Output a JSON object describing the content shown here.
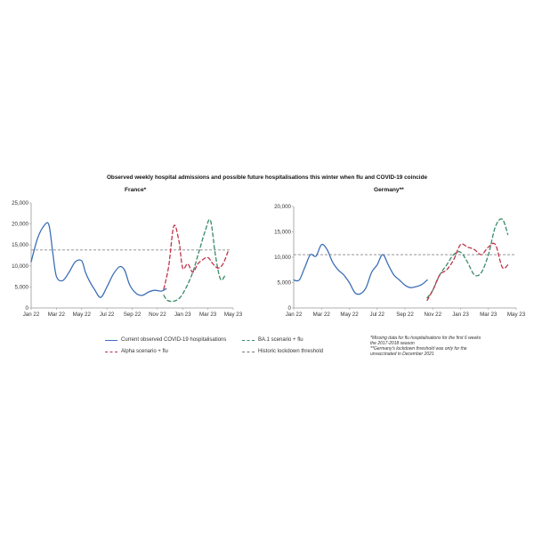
{
  "title": "Observed weekly hospital admissions and possible future hospitalisations this winter when flu and COVID-19 coincide",
  "legend": {
    "observed": "Current observed COVID-19 hospitalisations",
    "ba1": "BA.1 scenario + flu",
    "alpha": "Alpha scenario + flu",
    "historic": "Historic lockdown threshold"
  },
  "notes": [
    "*Missing data for flu hospitalisations for the first 6 weeks the 2017-2018 season",
    "**Germany's lockdown threshold was only for the unvaccinated in December 2021"
  ],
  "colors": {
    "observed": "#3d6fb6",
    "ba1": "#3a8a66",
    "alpha": "#c0334a",
    "historic": "#777777",
    "axis": "#999999"
  },
  "chart_data": [
    {
      "type": "line",
      "title": "France*",
      "x_ticks": [
        "Jan 22",
        "Mar 22",
        "May 22",
        "Jul 22",
        "Sep 22",
        "Nov 22",
        "Jan 23",
        "Mar 23",
        "May 23"
      ],
      "y_ticks": [
        "0",
        "5,000",
        "10,000",
        "15,000",
        "20,000",
        "25,000"
      ],
      "ylim": [
        0,
        25000
      ],
      "xlim": [
        0,
        16
      ],
      "threshold": 13800,
      "series": [
        {
          "name": "Current observed COVID-19 hospitalisations",
          "key": "observed",
          "x": [
            0,
            0.5,
            1,
            1.4,
            1.7,
            2,
            2.5,
            3,
            3.5,
            4,
            4.3,
            4.6,
            5,
            5.5,
            6,
            6.5,
            7,
            7.4,
            7.8,
            8.3,
            8.8,
            9.3,
            9.8,
            10.3,
            10.7
          ],
          "y": [
            11000,
            16500,
            19500,
            19800,
            13500,
            7500,
            6500,
            8500,
            11000,
            11200,
            8500,
            6500,
            4500,
            2500,
            5000,
            8000,
            9800,
            9000,
            5500,
            3500,
            3000,
            3800,
            4200,
            4000,
            4600
          ]
        },
        {
          "name": "BA.1 scenario + flu",
          "key": "ba1",
          "x": [
            10.5,
            10.8,
            11.3,
            11.8,
            12.3,
            12.8,
            13.3,
            13.8,
            14.2,
            14.6,
            15,
            15.4
          ],
          "y": [
            3000,
            1800,
            1600,
            2500,
            5000,
            8500,
            13500,
            18500,
            20800,
            12500,
            6800,
            8000
          ]
        },
        {
          "name": "Alpha scenario + flu",
          "key": "alpha",
          "x": [
            10.5,
            10.9,
            11.3,
            11.7,
            12,
            12.4,
            12.8,
            13.2,
            13.6,
            14,
            14.4,
            14.8,
            15.2,
            15.6
          ],
          "y": [
            4500,
            10000,
            19500,
            16000,
            9500,
            10500,
            8500,
            10500,
            11500,
            12000,
            10500,
            9500,
            10500,
            13500
          ]
        }
      ]
    },
    {
      "type": "line",
      "title": "Germany**",
      "x_ticks": [
        "Jan 22",
        "Mar 22",
        "May 22",
        "Jul 22",
        "Sep 22",
        "Nov 22",
        "Jan 23",
        "Mar 23",
        "May 23"
      ],
      "y_ticks": [
        "0",
        "5,000",
        "10,000",
        "15,000",
        "20,000"
      ],
      "ylim": [
        0,
        20000
      ],
      "xlim": [
        0,
        16
      ],
      "threshold": 10500,
      "series": [
        {
          "name": "Current observed COVID-19 hospitalisations",
          "key": "observed",
          "x": [
            0,
            0.4,
            0.8,
            1.2,
            1.6,
            2,
            2.4,
            2.8,
            3.2,
            3.6,
            4,
            4.4,
            4.8,
            5.2,
            5.6,
            6,
            6.4,
            6.8,
            7.2,
            7.6,
            8,
            8.4,
            8.8,
            9.2,
            9.6
          ],
          "y": [
            5500,
            5500,
            8000,
            10500,
            10200,
            12500,
            11500,
            9000,
            7500,
            6500,
            5000,
            3000,
            2800,
            4000,
            7000,
            8500,
            10500,
            8500,
            6500,
            5500,
            4500,
            4000,
            4200,
            4600,
            5500
          ]
        },
        {
          "name": "BA.1 scenario + flu",
          "key": "ba1",
          "x": [
            9.6,
            10,
            10.5,
            11,
            11.5,
            12,
            12.5,
            13,
            13.5,
            14,
            14.5,
            15,
            15.4
          ],
          "y": [
            2000,
            3500,
            6500,
            8500,
            10500,
            11000,
            9000,
            6500,
            7000,
            10500,
            16000,
            17500,
            14500
          ]
        },
        {
          "name": "Alpha scenario + flu",
          "key": "alpha",
          "x": [
            9.6,
            10,
            10.5,
            11,
            11.5,
            12,
            12.5,
            13,
            13.5,
            14,
            14.5,
            15,
            15.4
          ],
          "y": [
            1500,
            3500,
            6500,
            7500,
            9500,
            12500,
            12000,
            11500,
            10500,
            12000,
            12500,
            8000,
            8500
          ]
        }
      ]
    }
  ]
}
